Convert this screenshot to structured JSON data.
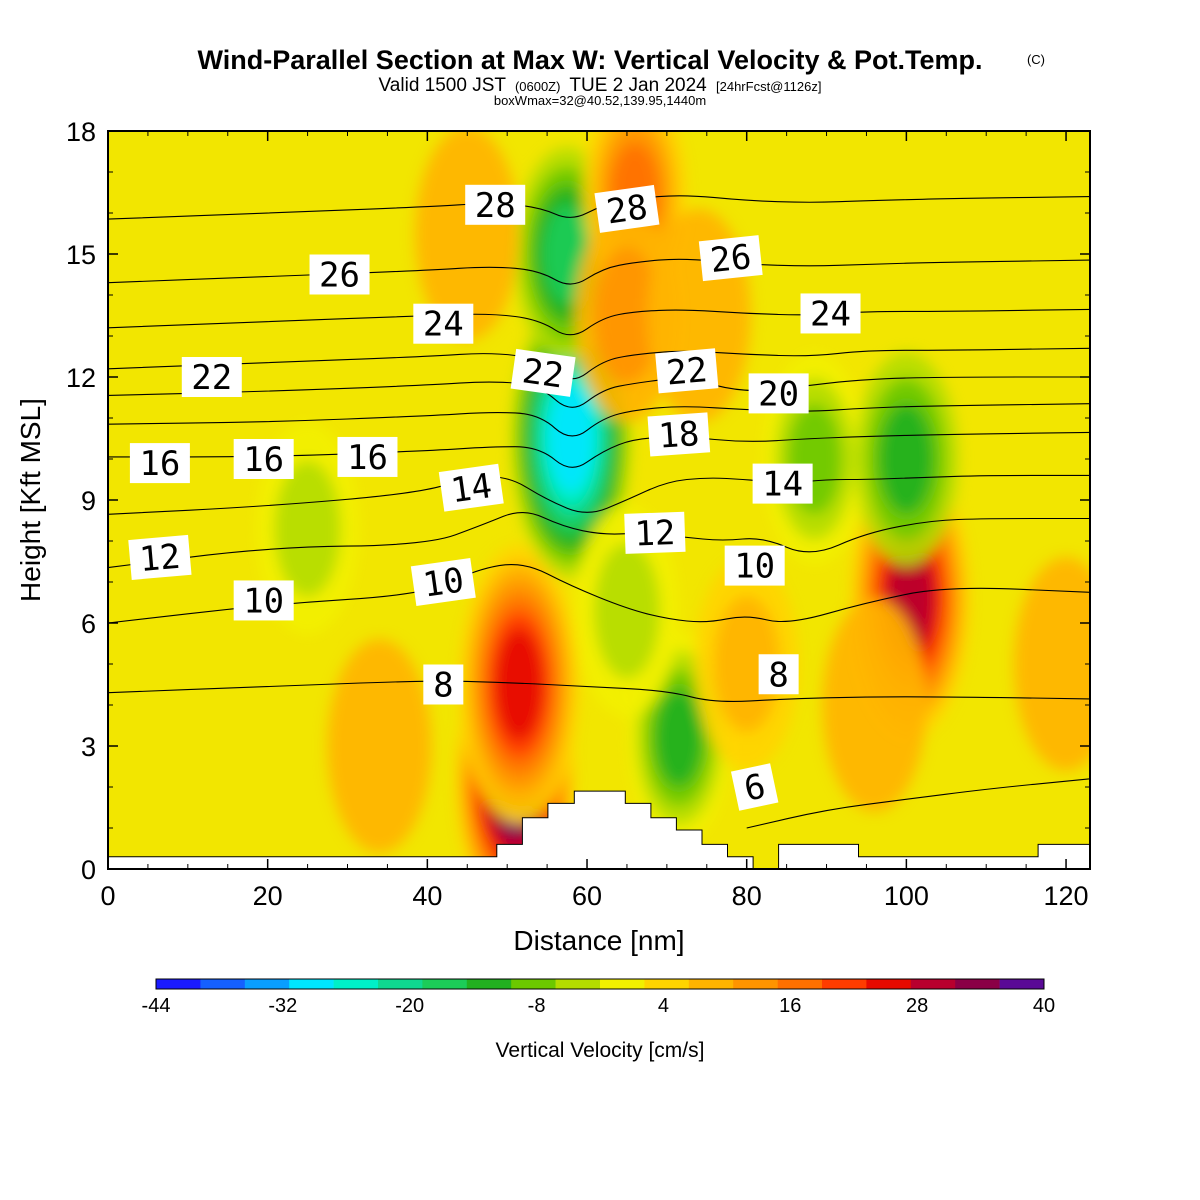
{
  "title": {
    "main": "Wind-Parallel Section at Max W: Vertical Velocity & Pot.Temp.",
    "copyright": "(C)",
    "valid_prefix": "Valid 1500 JST",
    "valid_z": "(0600Z)",
    "valid_date": "TUE 2 Jan 2024",
    "forecast": "[24hrFcst@1126z]",
    "box": "boxWmax=32@40.52,139.95,1440m"
  },
  "colors": {
    "background_fill": "#f2e600",
    "terrain": "#ffffff",
    "contour_line": "#000000"
  },
  "chart_data": {
    "type": "heatmap",
    "xlabel": "Distance [nm]",
    "ylabel": "Height [Kft MSL]",
    "xlim": [
      0,
      123
    ],
    "ylim": [
      0,
      18
    ],
    "x_ticks": [
      "0",
      "20",
      "40",
      "60",
      "80",
      "100",
      "120"
    ],
    "y_ticks": [
      "0",
      "3",
      "6",
      "9",
      "12",
      "15",
      "18"
    ],
    "colorbar": {
      "title": "Vertical Velocity [cm/s]",
      "bounds": [
        -44,
        40
      ],
      "labels": [
        "-44",
        "-32",
        "-20",
        "-8",
        "4",
        "16",
        "28",
        "40"
      ],
      "colors": [
        "#1a1aff",
        "#1560ff",
        "#0a9eff",
        "#00e6ff",
        "#00f0c8",
        "#10d890",
        "#1ccc58",
        "#22b020",
        "#6cc800",
        "#b4dc00",
        "#f2f000",
        "#ffd400",
        "#ffb400",
        "#ff9400",
        "#ff7000",
        "#ff3c00",
        "#e60a00",
        "#b8002e",
        "#8a0046",
        "#5a0a96"
      ]
    },
    "velocity_features": [
      {
        "x": 51,
        "y": 2.2,
        "value": 40
      },
      {
        "x": 51.5,
        "y": 4.5,
        "value": 26
      },
      {
        "x": 100.5,
        "y": 6.6,
        "value": 30
      },
      {
        "x": 58,
        "y": 10.5,
        "value": -28
      },
      {
        "x": 57.5,
        "y": 15.0,
        "value": -16
      },
      {
        "x": 66,
        "y": 16.5,
        "value": 18
      },
      {
        "x": 65,
        "y": 13.5,
        "value": 12
      },
      {
        "x": 88.5,
        "y": 10.0,
        "value": -10
      },
      {
        "x": 100,
        "y": 10.0,
        "value": -12
      },
      {
        "x": 25,
        "y": 8.3,
        "value": -6
      },
      {
        "x": 71.5,
        "y": 3.2,
        "value": -14
      },
      {
        "x": 34,
        "y": 3.0,
        "value": 8
      },
      {
        "x": 80,
        "y": 5.0,
        "value": 10
      },
      {
        "x": 45,
        "y": 15.5,
        "value": 7
      },
      {
        "x": 74,
        "y": 13.5,
        "value": 8
      },
      {
        "x": 65,
        "y": 6.3,
        "value": -6
      },
      {
        "x": 96,
        "y": 4.0,
        "value": 8
      },
      {
        "x": 120,
        "y": 5.0,
        "value": 8
      }
    ],
    "theta_contours": [
      {
        "label": "6",
        "x": [
          80,
          90,
          100,
          110,
          123
        ],
        "y": [
          1.0,
          1.45,
          1.7,
          1.95,
          2.2
        ]
      },
      {
        "label": "8",
        "x": [
          0,
          20,
          40,
          50,
          60,
          70,
          76,
          85,
          95,
          105,
          123
        ],
        "y": [
          4.3,
          4.45,
          4.6,
          4.55,
          4.45,
          4.35,
          4.05,
          4.15,
          4.2,
          4.2,
          4.15
        ]
      },
      {
        "label": "10",
        "x": [
          0,
          20,
          40,
          46,
          52,
          58,
          65,
          70,
          75,
          80,
          85,
          95,
          105,
          123
        ],
        "y": [
          6.0,
          6.45,
          6.7,
          7.3,
          7.5,
          6.9,
          6.35,
          6.1,
          6.0,
          6.2,
          5.95,
          6.5,
          6.9,
          6.75
        ]
      },
      {
        "label": "12",
        "x": [
          0,
          20,
          40,
          47,
          52,
          57,
          62,
          67,
          72,
          77,
          82,
          88,
          95,
          103,
          110,
          123
        ],
        "y": [
          7.35,
          7.85,
          7.9,
          8.4,
          8.8,
          8.35,
          8.15,
          8.2,
          8.1,
          8.0,
          8.1,
          7.6,
          8.2,
          8.5,
          8.55,
          8.55
        ]
      },
      {
        "label": "14",
        "x": [
          0,
          20,
          38,
          45,
          50,
          55,
          60,
          65,
          70,
          75,
          80,
          85,
          90,
          95,
          102,
          110,
          123
        ],
        "y": [
          8.65,
          8.85,
          9.15,
          9.5,
          9.6,
          9.0,
          8.6,
          9.0,
          9.45,
          9.55,
          9.5,
          9.4,
          9.5,
          9.5,
          9.55,
          9.6,
          9.6
        ]
      },
      {
        "label": "16",
        "x": [
          0,
          20,
          40,
          48,
          54,
          58,
          62,
          66,
          72,
          80,
          88,
          95,
          105,
          123
        ],
        "y": [
          10.05,
          10.05,
          10.2,
          10.3,
          10.3,
          9.65,
          10.2,
          10.5,
          10.55,
          10.4,
          10.5,
          10.55,
          10.6,
          10.65
        ]
      },
      {
        "label": "18",
        "x": [
          0,
          20,
          40,
          48,
          54,
          58,
          62,
          66,
          72,
          80,
          88,
          95,
          105,
          123
        ],
        "y": [
          10.85,
          10.9,
          11.05,
          11.15,
          11.1,
          10.4,
          11.0,
          11.2,
          11.3,
          11.2,
          11.15,
          11.25,
          11.3,
          11.35
        ]
      },
      {
        "label": "20",
        "x": [
          0,
          20,
          40,
          48,
          54,
          58,
          62,
          66,
          72,
          80,
          88,
          95,
          105,
          123
        ],
        "y": [
          11.55,
          11.65,
          11.8,
          11.9,
          11.8,
          11.1,
          11.7,
          11.85,
          12.0,
          11.6,
          11.8,
          11.95,
          12.0,
          12.0
        ]
      },
      {
        "label": "22",
        "x": [
          0,
          20,
          40,
          48,
          54,
          58,
          62,
          66,
          72,
          80,
          88,
          95,
          105,
          123
        ],
        "y": [
          12.2,
          12.35,
          12.5,
          12.6,
          12.45,
          11.8,
          12.4,
          12.55,
          12.65,
          12.55,
          12.5,
          12.65,
          12.65,
          12.7
        ]
      },
      {
        "label": "24",
        "x": [
          0,
          20,
          40,
          48,
          54,
          58,
          62,
          66,
          72,
          80,
          88,
          95,
          105,
          123
        ],
        "y": [
          13.2,
          13.35,
          13.5,
          13.55,
          13.4,
          12.9,
          13.45,
          13.6,
          13.65,
          13.55,
          13.5,
          13.6,
          13.6,
          13.65
        ]
      },
      {
        "label": "26",
        "x": [
          0,
          20,
          40,
          48,
          54,
          58,
          62,
          66,
          72,
          80,
          88,
          95,
          105,
          123
        ],
        "y": [
          14.3,
          14.45,
          14.6,
          14.7,
          14.6,
          14.15,
          14.65,
          14.8,
          14.9,
          14.75,
          14.7,
          14.75,
          14.8,
          14.85
        ]
      },
      {
        "label": "28",
        "x": [
          0,
          20,
          40,
          48,
          54,
          58,
          62,
          66,
          72,
          80,
          88,
          95,
          105,
          123
        ],
        "y": [
          15.85,
          16.0,
          16.15,
          16.25,
          16.15,
          15.8,
          16.2,
          16.35,
          16.45,
          16.3,
          16.25,
          16.3,
          16.35,
          16.4
        ]
      }
    ],
    "contour_labels": [
      {
        "text": "28",
        "x": 48.5,
        "y": 16.2,
        "angle": 0
      },
      {
        "text": "28",
        "x": 65,
        "y": 16.1,
        "angle": -8
      },
      {
        "text": "26",
        "x": 29,
        "y": 14.5,
        "angle": 0
      },
      {
        "text": "26",
        "x": 78,
        "y": 14.9,
        "angle": -6
      },
      {
        "text": "24",
        "x": 42,
        "y": 13.3,
        "angle": 0
      },
      {
        "text": "24",
        "x": 90.5,
        "y": 13.55,
        "angle": 0
      },
      {
        "text": "22",
        "x": 13,
        "y": 12.0,
        "angle": 0
      },
      {
        "text": "22",
        "x": 54.5,
        "y": 12.1,
        "angle": 8
      },
      {
        "text": "22",
        "x": 72.5,
        "y": 12.15,
        "angle": -5
      },
      {
        "text": "20",
        "x": 84,
        "y": 11.6,
        "angle": 0
      },
      {
        "text": "18",
        "x": 71.5,
        "y": 10.6,
        "angle": -4
      },
      {
        "text": "16",
        "x": 6.5,
        "y": 9.9,
        "angle": 0
      },
      {
        "text": "16",
        "x": 19.5,
        "y": 10.0,
        "angle": 0
      },
      {
        "text": "16",
        "x": 32.5,
        "y": 10.05,
        "angle": 0
      },
      {
        "text": "14",
        "x": 45.5,
        "y": 9.3,
        "angle": -8
      },
      {
        "text": "14",
        "x": 84.5,
        "y": 9.4,
        "angle": 0
      },
      {
        "text": "12",
        "x": 6.5,
        "y": 7.6,
        "angle": -5
      },
      {
        "text": "12",
        "x": 68.5,
        "y": 8.2,
        "angle": -2
      },
      {
        "text": "10",
        "x": 19.5,
        "y": 6.55,
        "angle": 0
      },
      {
        "text": "10",
        "x": 42,
        "y": 7.0,
        "angle": -8
      },
      {
        "text": "10",
        "x": 81,
        "y": 7.4,
        "angle": 0
      },
      {
        "text": "8",
        "x": 42,
        "y": 4.5,
        "angle": 0
      },
      {
        "text": "8",
        "x": 84,
        "y": 4.75,
        "angle": 0
      },
      {
        "text": "6",
        "x": 81,
        "y": 2.0,
        "angle": -12
      }
    ],
    "terrain": {
      "x": [
        0,
        48.7,
        48.7,
        51.9,
        51.9,
        55.1,
        55.1,
        58.4,
        58.4,
        64.8,
        64.8,
        68,
        68,
        71.2,
        71.2,
        74.4,
        74.4,
        77.6,
        77.6,
        80.8,
        80.8,
        84,
        84,
        94,
        94,
        116.5,
        116.5,
        123
      ],
      "y": [
        0.3,
        0.3,
        0.6,
        0.6,
        1.25,
        1.25,
        1.6,
        1.6,
        1.9,
        1.9,
        1.6,
        1.6,
        1.25,
        1.25,
        0.95,
        0.95,
        0.6,
        0.6,
        0.3,
        0.3,
        0.0,
        0.0,
        0.6,
        0.6,
        0.3,
        0.3,
        0.6,
        0.6
      ]
    }
  }
}
